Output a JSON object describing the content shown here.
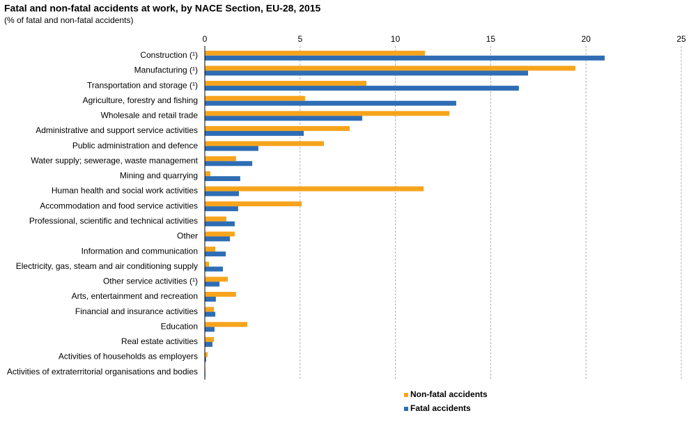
{
  "chart_data": {
    "type": "hbar",
    "title": "Fatal and non-fatal accidents at work, by NACE Section, EU-28, 2015",
    "subtitle": "(% of fatal and non-fatal accidents)",
    "categories": [
      "Construction (¹)",
      "Manufacturing (¹)",
      "Transportation and storage (¹)",
      "Agriculture, forestry and fishing",
      "Wholesale and retail trade",
      "Administrative and support service activities",
      "Public administration and defence",
      "Water supply; sewerage, waste management",
      "Mining and quarrying",
      "Human health and social work activities",
      "Accommodation and food service activities",
      "Professional, scientific and technical activities",
      "Other",
      "Information and communication",
      "Electricity, gas, steam and air conditioning supply",
      "Other service activities (¹)",
      "Arts, entertainment and recreation",
      "Financial and insurance activities",
      "Education",
      "Real estate activities",
      "Activities of households as employers",
      "Activities of extraterritorial organisations and bodies"
    ],
    "series": [
      {
        "name": "Non-fatal accidents",
        "color": "#f7a41d",
        "values": [
          11.55,
          19.44,
          8.48,
          5.26,
          12.83,
          7.6,
          6.25,
          1.64,
          0.29,
          11.48,
          5.08,
          1.13,
          1.57,
          0.55,
          0.22,
          1.21,
          1.64,
          0.48,
          2.23,
          0.48,
          0.15,
          0.03
        ]
      },
      {
        "name": "Fatal accidents",
        "color": "#2e6db4",
        "values": [
          20.98,
          16.96,
          16.48,
          13.19,
          8.26,
          5.19,
          2.81,
          2.49,
          1.86,
          1.79,
          1.75,
          1.57,
          1.32,
          1.1,
          0.95,
          0.77,
          0.58,
          0.55,
          0.51,
          0.4,
          0.07,
          0.03
        ]
      }
    ],
    "xlim": [
      0,
      25
    ],
    "xticks": [
      0,
      5,
      10,
      15,
      20,
      25
    ],
    "grid": true,
    "legend": "bottom"
  }
}
